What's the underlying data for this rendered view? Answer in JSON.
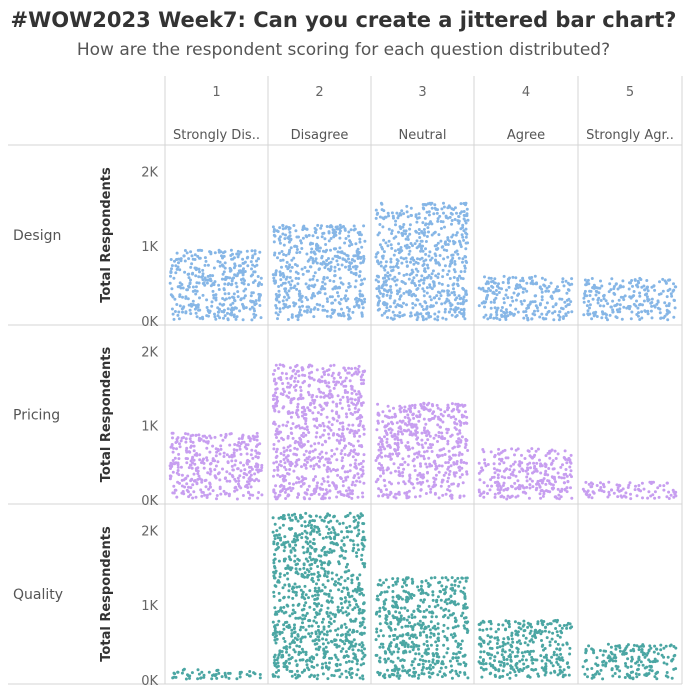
{
  "title": "#WOW2023 Week7: Can you create a jittered bar chart?",
  "subtitle": "How are the respondent scoring for each question distributed?",
  "chart_data": {
    "type": "scatter",
    "style": "jittered bar",
    "columns": [
      {
        "score": "1",
        "label": "Strongly Dis.."
      },
      {
        "score": "2",
        "label": "Disagree"
      },
      {
        "score": "3",
        "label": "Neutral"
      },
      {
        "score": "4",
        "label": "Agree"
      },
      {
        "score": "5",
        "label": "Strongly Agr.."
      }
    ],
    "rows": [
      {
        "name": "Design",
        "color": "#86b6e6",
        "values": [
          950,
          1280,
          1580,
          600,
          570
        ]
      },
      {
        "name": "Pricing",
        "color": "#c79ef0",
        "values": [
          900,
          1820,
          1310,
          700,
          240
        ]
      },
      {
        "name": "Quality",
        "color": "#4ba6a3",
        "values": [
          150,
          2230,
          1370,
          800,
          480
        ]
      }
    ],
    "ylabel": "Total Respondents",
    "yticks": [
      "0K",
      "1K",
      "2K"
    ],
    "ylim": [
      0,
      2300
    ]
  }
}
